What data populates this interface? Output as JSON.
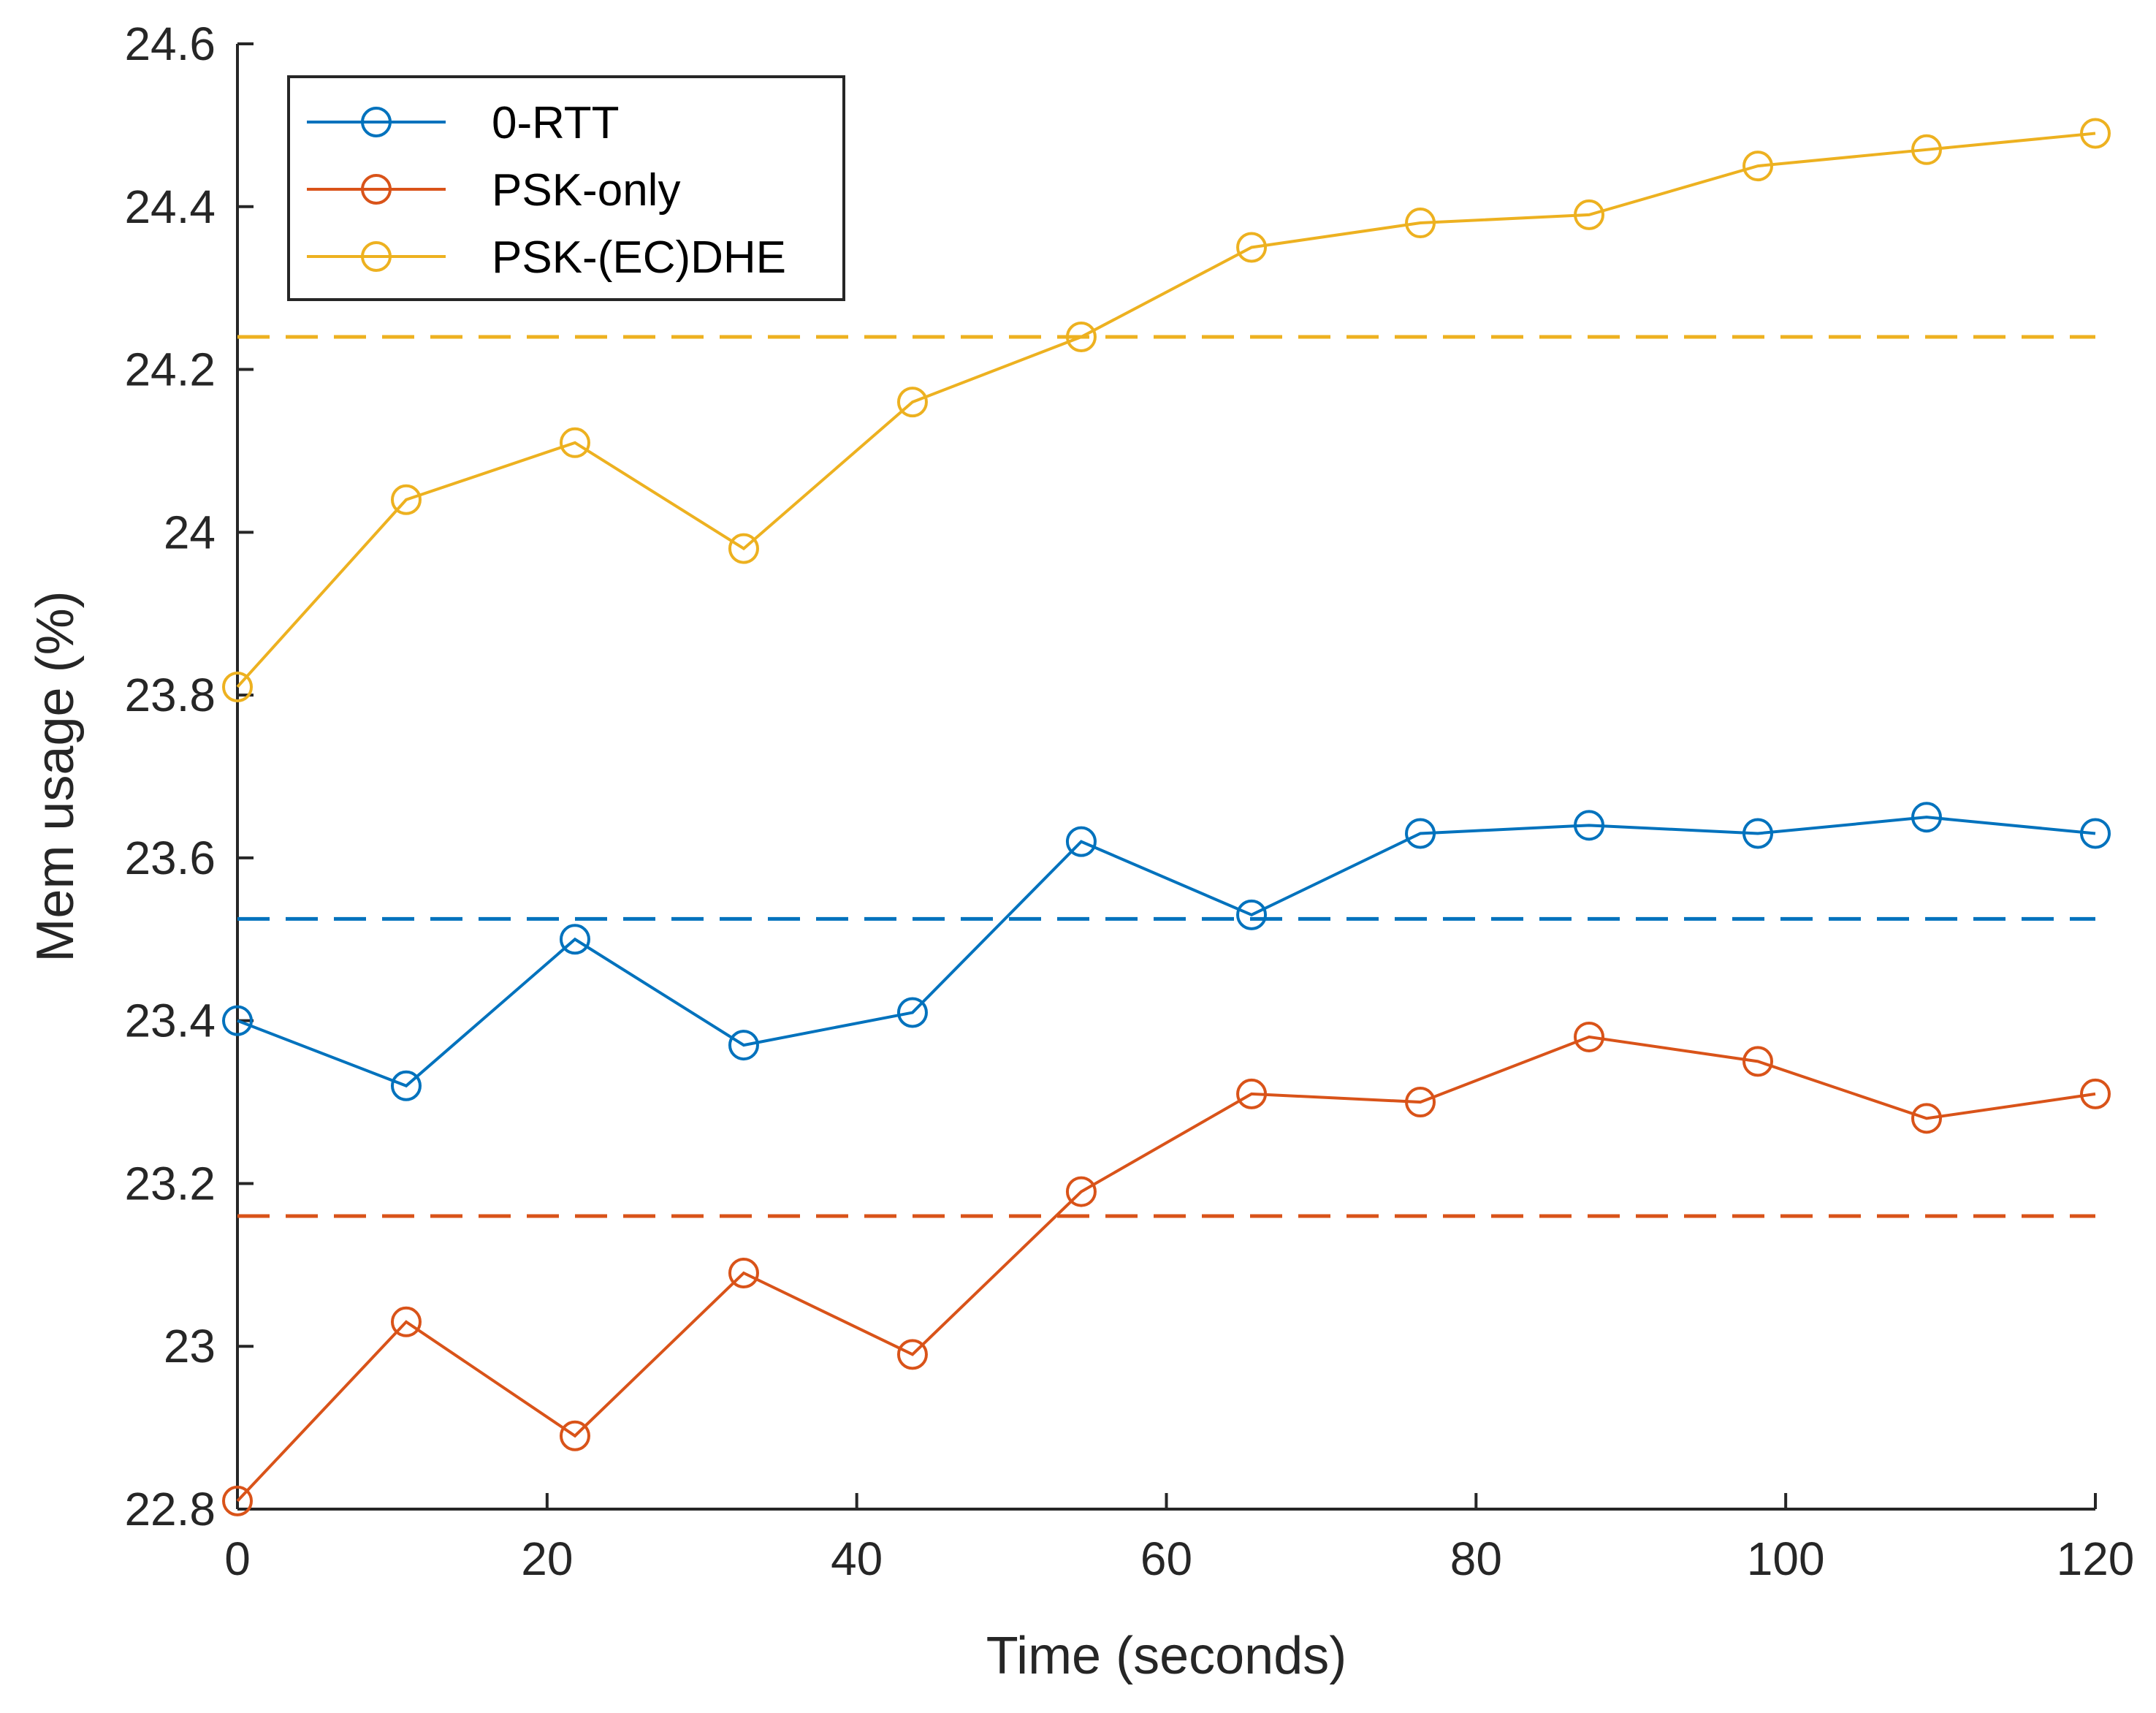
{
  "chart_data": {
    "type": "line",
    "xlabel": "Time (seconds)",
    "ylabel": "Mem usage (%)",
    "xlim": [
      0,
      120
    ],
    "ylim": [
      22.8,
      24.6
    ],
    "x_ticks": [
      0,
      20,
      40,
      60,
      80,
      100,
      120
    ],
    "x_tick_labels": [
      "0",
      "20",
      "40",
      "60",
      "80",
      "100",
      "120"
    ],
    "y_ticks": [
      22.8,
      23,
      23.2,
      23.4,
      23.6,
      23.8,
      24,
      24.2,
      24.4,
      24.6
    ],
    "y_tick_labels": [
      "22.8",
      "23",
      "23.2",
      "23.4",
      "23.6",
      "23.8",
      "24",
      "24.2",
      "24.4",
      "24.6"
    ],
    "grid": false,
    "legend_position": "top-left",
    "x": [
      0,
      10.9,
      21.8,
      32.7,
      43.6,
      54.5,
      65.5,
      76.4,
      87.3,
      98.2,
      109.1,
      120
    ],
    "series": [
      {
        "name": "0-RTT",
        "color": "#0072BD",
        "values": [
          23.4,
          23.32,
          23.5,
          23.37,
          23.41,
          23.62,
          23.53,
          23.63,
          23.64,
          23.63,
          23.65,
          23.63
        ],
        "mean": 23.525
      },
      {
        "name": "PSK-only",
        "color": "#D95319",
        "values": [
          22.81,
          23.03,
          22.89,
          23.09,
          22.99,
          23.19,
          23.31,
          23.3,
          23.38,
          23.35,
          23.28,
          23.31
        ],
        "mean": 23.16
      },
      {
        "name": "PSK-(EC)DHE",
        "color": "#EDB120",
        "values": [
          23.81,
          24.04,
          24.11,
          23.98,
          24.16,
          24.24,
          24.35,
          24.38,
          24.39,
          24.45,
          24.47,
          24.49
        ],
        "mean": 24.24
      }
    ]
  }
}
